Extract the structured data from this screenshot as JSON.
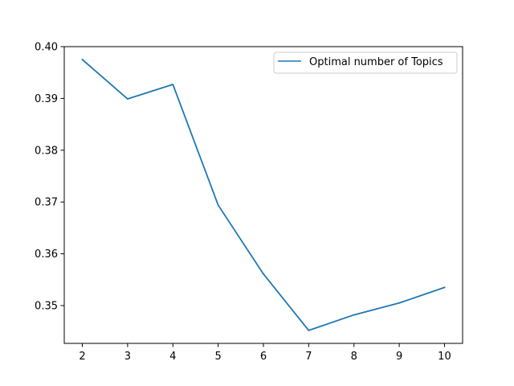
{
  "chart_data": {
    "type": "line",
    "title": "",
    "xlabel": "",
    "ylabel": "",
    "x": [
      2,
      3,
      4,
      5,
      6,
      7,
      8,
      9,
      10
    ],
    "series": [
      {
        "name": "Optimal number of Topics",
        "color": "#1f77b4",
        "values": [
          0.3975,
          0.3899,
          0.3927,
          0.3694,
          0.3561,
          0.3452,
          0.3482,
          0.3505,
          0.3535
        ]
      }
    ],
    "xlim": [
      1.6,
      10.4
    ],
    "ylim": [
      0.3427,
      0.4
    ],
    "xticks": [
      2,
      3,
      4,
      5,
      6,
      7,
      8,
      9,
      10
    ],
    "yticks": [
      0.35,
      0.36,
      0.37,
      0.38,
      0.39,
      0.4
    ],
    "ytick_labels": [
      "0.35",
      "0.36",
      "0.37",
      "0.38",
      "0.39",
      "0.40"
    ],
    "grid": false,
    "legend_position": "upper right"
  }
}
